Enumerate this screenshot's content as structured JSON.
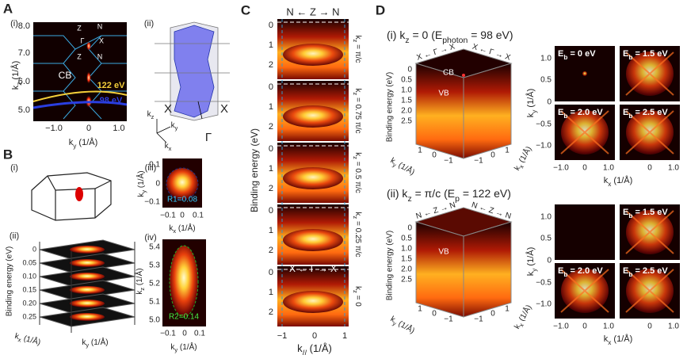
{
  "panel_a": {
    "letter": "A",
    "sub_i": "(i)",
    "sub_ii": "(ii)",
    "yticks": [
      "8.0",
      "7.0",
      "6.0",
      "5.0"
    ],
    "xticks": [
      "−1.0",
      "0",
      "1.0"
    ],
    "ylabel": [
      "k",
      "z",
      " (1/Å)"
    ],
    "xlabel": [
      "k",
      "y",
      " (1/Å)"
    ],
    "points": [
      "Z",
      "N",
      "Γ",
      "X",
      "Z",
      "N"
    ],
    "cb": "CB",
    "energy_high": "122 eV",
    "energy_low": "98 eV",
    "axes_3d": [
      [
        "k",
        "z"
      ],
      [
        "k",
        "y"
      ],
      [
        "k",
        "x"
      ]
    ],
    "bz_points": [
      "X",
      "X",
      "Γ"
    ]
  },
  "panel_b": {
    "letter": "B",
    "sub_i": "(i)",
    "sub_ii": "(ii)",
    "sub_iii": "(iii)",
    "sub_iv": "(iv)",
    "stack_ylabel": "Binding energy (eV)",
    "stack_yticks": [
      "0",
      "0.05",
      "0.10",
      "0.15",
      "0.20",
      "0.25"
    ],
    "stack_xlabels": [
      [
        "k",
        "x",
        " (1/Å)"
      ],
      [
        "k",
        "y",
        " (1/Å)"
      ]
    ],
    "iii": {
      "yticks": [
        "0.1",
        "0",
        "−0.1"
      ],
      "xticks": [
        "−0.1",
        "0",
        "0.1"
      ],
      "ylabel": [
        "k",
        "y",
        " (1/Å)"
      ],
      "xlabel": [
        "k",
        "x",
        " (1/Å)"
      ],
      "radius": "R1=0.08"
    },
    "iv": {
      "yticks": [
        "5.4",
        "5.3",
        "5.2",
        "5.1",
        "5.0"
      ],
      "xticks": [
        "−0.1",
        "0",
        "0.1"
      ],
      "ylabel": [
        "k",
        "z",
        " (1/Å)"
      ],
      "xlabel": [
        "k",
        "y",
        " (1/Å)"
      ],
      "radius": "R2=0.14"
    }
  },
  "panel_c": {
    "letter": "C",
    "top": "N ← Z → N",
    "bottom_path": "X ← Γ → X",
    "yticks": [
      "0",
      "1",
      "2"
    ],
    "ylabel": "Binding energy (eV)",
    "xticks": [
      "−1",
      "0",
      "1"
    ],
    "xlabel": [
      "k",
      "//",
      " (1/Å)"
    ],
    "kz_labels": [
      [
        "k",
        "z",
        " = π/c"
      ],
      [
        "k",
        "z",
        " = 0.75 π/c"
      ],
      [
        "k",
        "z",
        " = 0.5 π/c"
      ],
      [
        "k",
        "z",
        " = 0.25 π/c"
      ],
      [
        "k",
        "z",
        " = 0"
      ]
    ]
  },
  "panel_d": {
    "letter": "D",
    "i": {
      "title": [
        "(i) k",
        "z",
        " = 0  (E",
        "photon",
        " = 98 eV)"
      ],
      "edges": [
        "X ← Γ → X",
        "X ← Γ → X"
      ],
      "cb": "CB",
      "vb": "VB",
      "maps": [
        [
          "E",
          "b",
          " = 0 eV"
        ],
        [
          "E",
          "b",
          " = 1.5 eV"
        ],
        [
          "E",
          "b",
          " = 2.0 eV"
        ],
        [
          "E",
          "b",
          " = 2.5 eV"
        ]
      ]
    },
    "ii": {
      "title": [
        "(ii) k",
        "z",
        " = π/c  (E",
        "p",
        " = 122 eV)"
      ],
      "edges": [
        "N ← Z → N",
        "N ← Z → N"
      ],
      "vb": "VB",
      "maps": [
        [
          "E",
          "b",
          " = 1.5 eV"
        ],
        [
          "E",
          "b",
          " = 2.0 eV"
        ],
        [
          "E",
          "b",
          " = 2.5 eV"
        ]
      ]
    },
    "cube_ylabel": "Binding energy (eV)",
    "cube_yticks": [
      "0",
      "0.5",
      "1.0",
      "1.5",
      "2.0",
      "2.5"
    ],
    "cube_left_ticks": [
      "1",
      "0",
      "−1"
    ],
    "cube_right_ticks": [
      "−1",
      "0",
      "1"
    ],
    "cube_xlabels": [
      [
        "k",
        "y",
        " (1/Å)"
      ],
      [
        "k",
        "x",
        " (1/Å)"
      ]
    ],
    "map_yticks": [
      "1.0",
      "0.5",
      "0",
      "−0.5",
      "−1.0"
    ],
    "map_xticks": [
      "−1.0",
      "0",
      "1.0",
      "0",
      "1.0"
    ],
    "map_ylabel": [
      "k",
      "y",
      " (1/Å)"
    ],
    "map_xlabel": [
      "k",
      "x",
      " (1/Å)"
    ]
  }
}
